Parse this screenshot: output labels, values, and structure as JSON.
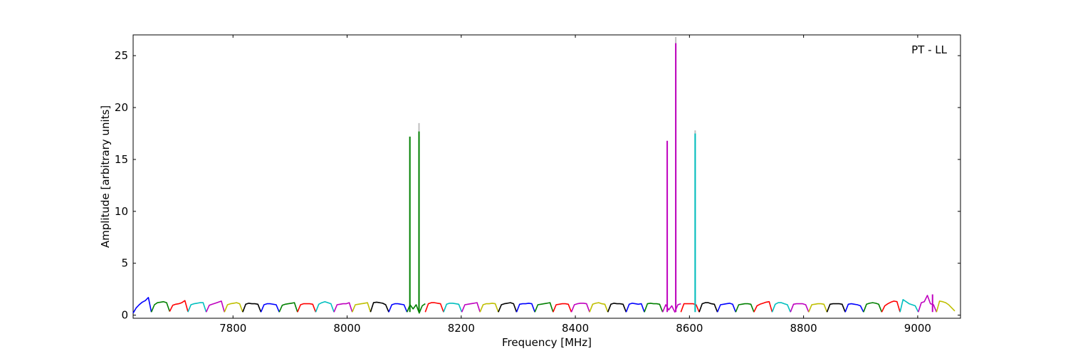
{
  "chart_data": {
    "type": "line",
    "title": "",
    "annotation": "PT - LL",
    "annotation_position": "top-right",
    "xlabel": "Frequency [MHz]",
    "ylabel": "Amplitude [arbitrary units]",
    "xlim": [
      7625,
      9075
    ],
    "ylim": [
      -0.3,
      27
    ],
    "xticks": [
      7800,
      8000,
      8200,
      8400,
      8600,
      8800,
      9000
    ],
    "yticks": [
      0,
      5,
      10,
      15,
      20,
      25
    ],
    "grid": false,
    "legend": "none",
    "colors": [
      "#0000ff",
      "#008000",
      "#ff0000",
      "#00bfbf",
      "#bf00bf",
      "#bfbf00",
      "#000000"
    ],
    "channel_width_mhz": 32,
    "channels": [
      {
        "start": 7625,
        "color": "#0000ff",
        "values": [
          0.2,
          0.7,
          1.0,
          1.25,
          1.4,
          1.7,
          0.3
        ]
      },
      {
        "start": 7657,
        "color": "#008000",
        "values": [
          0.3,
          1.0,
          1.2,
          1.25,
          1.3,
          1.2,
          0.35
        ]
      },
      {
        "start": 7689,
        "color": "#ff0000",
        "values": [
          0.35,
          0.95,
          1.05,
          1.1,
          1.2,
          1.4,
          0.35
        ]
      },
      {
        "start": 7721,
        "color": "#00bfbf",
        "values": [
          0.3,
          1.0,
          1.1,
          1.15,
          1.2,
          1.2,
          0.3
        ]
      },
      {
        "start": 7753,
        "color": "#bf00bf",
        "values": [
          0.3,
          0.95,
          1.05,
          1.15,
          1.25,
          1.35,
          0.3
        ]
      },
      {
        "start": 7785,
        "color": "#bfbf00",
        "values": [
          0.3,
          1.0,
          1.1,
          1.15,
          1.2,
          1.1,
          0.3
        ]
      },
      {
        "start": 7817,
        "color": "#000000",
        "values": [
          0.3,
          1.05,
          1.15,
          1.1,
          1.1,
          1.05,
          0.3
        ]
      },
      {
        "start": 7849,
        "color": "#0000ff",
        "values": [
          0.3,
          1.0,
          1.1,
          1.1,
          1.05,
          1.0,
          0.3
        ]
      },
      {
        "start": 7881,
        "color": "#008000",
        "values": [
          0.3,
          0.95,
          1.05,
          1.1,
          1.15,
          1.2,
          0.3
        ]
      },
      {
        "start": 7913,
        "color": "#ff0000",
        "values": [
          0.3,
          1.0,
          1.1,
          1.1,
          1.1,
          1.05,
          0.3
        ]
      },
      {
        "start": 7945,
        "color": "#00bfbf",
        "values": [
          0.3,
          1.05,
          1.2,
          1.3,
          1.2,
          1.1,
          0.3
        ]
      },
      {
        "start": 7977,
        "color": "#bf00bf",
        "values": [
          0.3,
          1.0,
          1.05,
          1.1,
          1.1,
          1.2,
          0.3
        ]
      },
      {
        "start": 8009,
        "color": "#bfbf00",
        "values": [
          0.3,
          1.0,
          1.05,
          1.1,
          1.15,
          1.2,
          0.3
        ]
      },
      {
        "start": 8041,
        "color": "#000000",
        "values": [
          0.3,
          1.2,
          1.25,
          1.2,
          1.15,
          1.0,
          0.3
        ]
      },
      {
        "start": 8073,
        "color": "#0000ff",
        "values": [
          0.3,
          1.0,
          1.1,
          1.1,
          1.05,
          1.0,
          0.3
        ]
      },
      {
        "start": 8105,
        "color": "#008000",
        "values": [
          0.3,
          1.0,
          0.6,
          1.0,
          0.2,
          0.9,
          1.1
        ]
      },
      {
        "start": 8137,
        "color": "#ff0000",
        "values": [
          0.3,
          1.1,
          1.2,
          1.2,
          1.15,
          1.1,
          0.3
        ]
      },
      {
        "start": 8169,
        "color": "#00bfbf",
        "values": [
          0.3,
          1.05,
          1.15,
          1.15,
          1.1,
          1.05,
          0.3
        ]
      },
      {
        "start": 8201,
        "color": "#bf00bf",
        "values": [
          0.3,
          1.0,
          1.05,
          1.1,
          1.15,
          1.2,
          0.3
        ]
      },
      {
        "start": 8233,
        "color": "#bfbf00",
        "values": [
          0.3,
          1.0,
          1.1,
          1.1,
          1.15,
          1.1,
          0.3
        ]
      },
      {
        "start": 8265,
        "color": "#000000",
        "values": [
          0.3,
          1.0,
          1.1,
          1.15,
          1.2,
          1.1,
          0.3
        ]
      },
      {
        "start": 8297,
        "color": "#0000ff",
        "values": [
          0.3,
          1.05,
          1.1,
          1.1,
          1.15,
          1.1,
          0.3
        ]
      },
      {
        "start": 8329,
        "color": "#008000",
        "values": [
          0.3,
          1.0,
          1.05,
          1.1,
          1.15,
          1.2,
          0.3
        ]
      },
      {
        "start": 8361,
        "color": "#ff0000",
        "values": [
          0.3,
          1.0,
          1.05,
          1.1,
          1.1,
          1.05,
          0.3
        ]
      },
      {
        "start": 8393,
        "color": "#bf00bf",
        "values": [
          0.3,
          1.0,
          1.1,
          1.15,
          1.15,
          1.1,
          0.3
        ]
      },
      {
        "start": 8425,
        "color": "#bfbf00",
        "values": [
          0.3,
          1.05,
          1.15,
          1.2,
          1.1,
          1.05,
          0.3
        ]
      },
      {
        "start": 8457,
        "color": "#000000",
        "values": [
          0.3,
          1.05,
          1.15,
          1.1,
          1.1,
          1.05,
          0.3
        ]
      },
      {
        "start": 8489,
        "color": "#0000ff",
        "values": [
          0.3,
          1.05,
          1.15,
          1.1,
          1.05,
          1.1,
          0.3
        ]
      },
      {
        "start": 8521,
        "color": "#008000",
        "values": [
          0.3,
          1.1,
          1.15,
          1.1,
          1.1,
          1.05,
          0.3
        ]
      },
      {
        "start": 8553,
        "color": "#bf00bf",
        "values": [
          0.3,
          1.0,
          0.5,
          0.9,
          0.3,
          1.0,
          1.1
        ]
      },
      {
        "start": 8585,
        "color": "#ff0000",
        "values": [
          0.3,
          1.1,
          1.1,
          1.1,
          1.1,
          1.0,
          0.3
        ]
      },
      {
        "start": 8617,
        "color": "#000000",
        "values": [
          0.3,
          1.1,
          1.2,
          1.2,
          1.1,
          1.05,
          0.3
        ]
      },
      {
        "start": 8649,
        "color": "#0000ff",
        "values": [
          0.3,
          1.0,
          1.05,
          1.1,
          1.15,
          1.05,
          0.3
        ]
      },
      {
        "start": 8681,
        "color": "#008000",
        "values": [
          0.3,
          1.0,
          1.05,
          1.1,
          1.1,
          1.05,
          0.3
        ]
      },
      {
        "start": 8713,
        "color": "#ff0000",
        "values": [
          0.3,
          0.9,
          1.05,
          1.15,
          1.25,
          1.3,
          0.3
        ]
      },
      {
        "start": 8745,
        "color": "#00bfbf",
        "values": [
          0.3,
          1.05,
          1.2,
          1.2,
          1.1,
          1.0,
          0.3
        ]
      },
      {
        "start": 8777,
        "color": "#bf00bf",
        "values": [
          0.3,
          1.05,
          1.1,
          1.1,
          1.1,
          1.0,
          0.3
        ]
      },
      {
        "start": 8809,
        "color": "#bfbf00",
        "values": [
          0.3,
          1.0,
          1.05,
          1.1,
          1.1,
          1.05,
          0.3
        ]
      },
      {
        "start": 8841,
        "color": "#000000",
        "values": [
          0.3,
          1.05,
          1.1,
          1.1,
          1.1,
          1.05,
          0.3
        ]
      },
      {
        "start": 8873,
        "color": "#0000ff",
        "values": [
          0.3,
          1.05,
          1.1,
          1.05,
          1.0,
          0.9,
          0.3
        ]
      },
      {
        "start": 8905,
        "color": "#008000",
        "values": [
          0.3,
          1.05,
          1.15,
          1.2,
          1.15,
          1.05,
          0.3
        ]
      },
      {
        "start": 8937,
        "color": "#ff0000",
        "values": [
          0.3,
          0.9,
          1.1,
          1.25,
          1.35,
          1.3,
          0.3
        ]
      },
      {
        "start": 8969,
        "color": "#00bfbf",
        "values": [
          0.3,
          1.5,
          1.3,
          1.1,
          1.0,
          0.9,
          0.3
        ]
      },
      {
        "start": 9001,
        "color": "#bf00bf",
        "values": [
          0.3,
          1.2,
          1.3,
          1.9,
          1.1,
          1.0,
          0.3
        ]
      },
      {
        "start": 9033,
        "color": "#bfbf00",
        "values": [
          0.3,
          1.35,
          1.3,
          1.2,
          1.0,
          0.7,
          0.4
        ]
      }
    ],
    "spikes": [
      {
        "x": 8110,
        "y": 17.2,
        "color": "#008000"
      },
      {
        "x": 8126,
        "y": 18.5,
        "color": "#bfbfbf"
      },
      {
        "x": 8126,
        "y": 17.7,
        "color": "#008000"
      },
      {
        "x": 8561,
        "y": 16.8,
        "color": "#bf00bf"
      },
      {
        "x": 8576,
        "y": 26.8,
        "color": "#bfbfbf"
      },
      {
        "x": 8576,
        "y": 26.2,
        "color": "#bf00bf"
      },
      {
        "x": 8610,
        "y": 17.8,
        "color": "#bfbfbf"
      },
      {
        "x": 8610,
        "y": 17.5,
        "color": "#00bfbf"
      },
      {
        "x": 9026,
        "y": 2.0,
        "color": "#bf00bf"
      }
    ]
  }
}
